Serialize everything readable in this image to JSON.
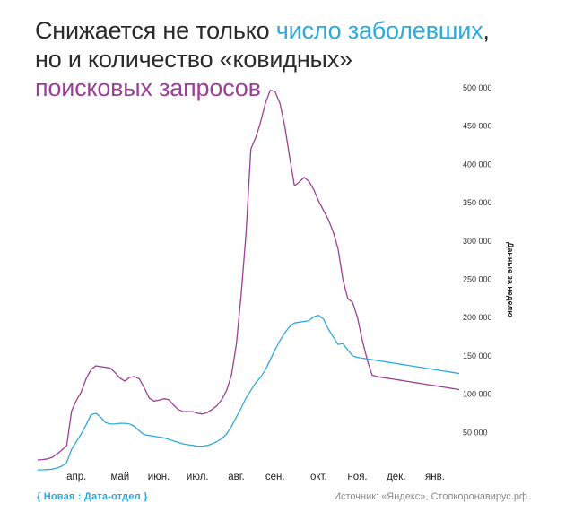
{
  "title": {
    "part1": "Снижается не только ",
    "part2": "число заболевших",
    "part3": ",",
    "part4": "но и количество «ковидных»",
    "part5": "поисковых запросов"
  },
  "colors": {
    "cases": "#2eaadc",
    "searches": "#9c3f96",
    "text": "#2b2b2b",
    "source": "#8a8a8a"
  },
  "chart_data": {
    "type": "line",
    "x": [
      0,
      0.5,
      1,
      1.5,
      2,
      2.5,
      3,
      3.5,
      4,
      4.5,
      5,
      5.5,
      6,
      6.5,
      7,
      7.5,
      8,
      8.5,
      9,
      9.5,
      10,
      10.5,
      11,
      11.5,
      12,
      12.5,
      13,
      13.5,
      14,
      14.5,
      15,
      15.5,
      16,
      16.5,
      17,
      17.5,
      18,
      18.5,
      19,
      19.5,
      20,
      20.5,
      21,
      21.5,
      22,
      22.5,
      23,
      23.5,
      24,
      24.5,
      25,
      25.5,
      26,
      26.5,
      27,
      27.5,
      28,
      28.5,
      29,
      29.5,
      30,
      30.5,
      31,
      31.5,
      32,
      32.5,
      33,
      33.5,
      34,
      34.5,
      35,
      35.5,
      36,
      36.5,
      37,
      37.5,
      38,
      38.5,
      39,
      39.5,
      40,
      40.5,
      41,
      41.5,
      42,
      42.5,
      43,
      43.5
    ],
    "series": [
      {
        "color": "#9c3f96",
        "values": [
          14000,
          14500,
          15500,
          17500,
          22000,
          27000,
          33000,
          78000,
          92000,
          103000,
          120000,
          132000,
          137000,
          136000,
          135000,
          134000,
          128000,
          121000,
          117000,
          122000,
          123000,
          120000,
          108000,
          95000,
          91000,
          92000,
          94000,
          93000,
          86000,
          80000,
          77000,
          77000,
          77000,
          75000,
          74000,
          76000,
          80000,
          85000,
          93000,
          105000,
          125000,
          165000,
          230000,
          310000,
          420000,
          435000,
          455000,
          480000,
          497000,
          495000,
          480000,
          450000,
          410000,
          372000,
          377000,
          383000,
          378000,
          367000,
          352000,
          340000,
          328000,
          312000,
          290000,
          250000,
          225000,
          220000,
          200000,
          170000,
          145000,
          125000,
          123000,
          122000,
          121000,
          120000,
          119000,
          118000,
          117000,
          116000,
          115000,
          114000,
          113000,
          112000,
          111000,
          110000,
          109000,
          108000,
          107000,
          106000
        ]
      },
      {
        "color": "#2eaadc",
        "values": [
          1000,
          1200,
          1500,
          2000,
          3500,
          6000,
          11000,
          28000,
          38000,
          48000,
          60000,
          73000,
          75000,
          70000,
          63000,
          61000,
          61000,
          62000,
          62000,
          61000,
          58000,
          52000,
          47000,
          46000,
          45000,
          44000,
          43000,
          41000,
          39000,
          37000,
          35000,
          34000,
          33000,
          32000,
          32000,
          33000,
          35000,
          38000,
          42000,
          48000,
          58000,
          70000,
          82000,
          95000,
          105000,
          115000,
          122000,
          132000,
          145000,
          158000,
          170000,
          180000,
          188000,
          193000,
          194000,
          195000,
          196000,
          201000,
          203000,
          198000,
          185000,
          175000,
          165000,
          166000,
          158000,
          150000,
          148000,
          147000,
          146000,
          145000,
          144000,
          143000,
          142000,
          141000,
          140000,
          139000,
          138000,
          137000,
          136000,
          135000,
          134000,
          133000,
          132000,
          131000,
          130000,
          129000,
          128000,
          127000
        ]
      }
    ],
    "x_tick_labels": [
      "апр.",
      "май",
      "июн.",
      "июл.",
      "авг.",
      "сен.",
      "окт.",
      "ноя.",
      "дек.",
      "янв."
    ],
    "x_tick_positions": [
      4,
      8.5,
      12.5,
      16.5,
      20.5,
      24.5,
      29,
      33,
      37,
      41
    ],
    "y_ticks": [
      50000,
      100000,
      150000,
      200000,
      250000,
      300000,
      350000,
      400000,
      450000,
      500000
    ],
    "y_tick_labels": [
      "50 000",
      "100 000",
      "150 000",
      "200 000",
      "250 000",
      "300 000",
      "350 000",
      "400 000",
      "450 000",
      "500 000"
    ],
    "ylim": [
      0,
      500000
    ],
    "y_note": "Данные за неделю",
    "grid": false,
    "legend": "none"
  },
  "footer": {
    "credit": "{ Новая : Дата-отдел }",
    "source": "Источник: «Яндекс», Стопкоронавирус.рф"
  }
}
